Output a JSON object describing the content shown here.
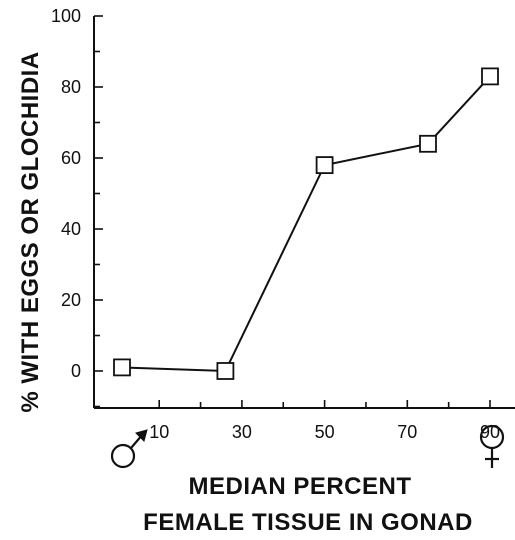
{
  "chart_data": {
    "type": "line",
    "title": "",
    "xlabel_lines": [
      "MEDIAN PERCENT",
      "FEMALE TISSUE IN GONAD"
    ],
    "ylabel": "% WITH EGGS OR GLOCHIDIA",
    "xlim": [
      -2,
      98
    ],
    "ylim": [
      -10,
      100
    ],
    "x_ticks": [
      10,
      30,
      50,
      70,
      90
    ],
    "x_minor_ticks": [
      20,
      40,
      60,
      80
    ],
    "y_ticks": [
      0,
      20,
      40,
      60,
      80,
      100
    ],
    "y_minor_ticks": [
      -10,
      10,
      30,
      50,
      70,
      90
    ],
    "grid": false,
    "legend": "none",
    "marker": "open-square",
    "x_end_symbols": {
      "left": "male-symbol-icon",
      "right": "female-symbol-icon"
    },
    "series": [
      {
        "x": [
          1,
          26,
          50,
          75,
          90
        ],
        "values": [
          1,
          0,
          58,
          64,
          83
        ]
      }
    ],
    "colors": {
      "ink": "#111111",
      "background": "#ffffff"
    }
  }
}
